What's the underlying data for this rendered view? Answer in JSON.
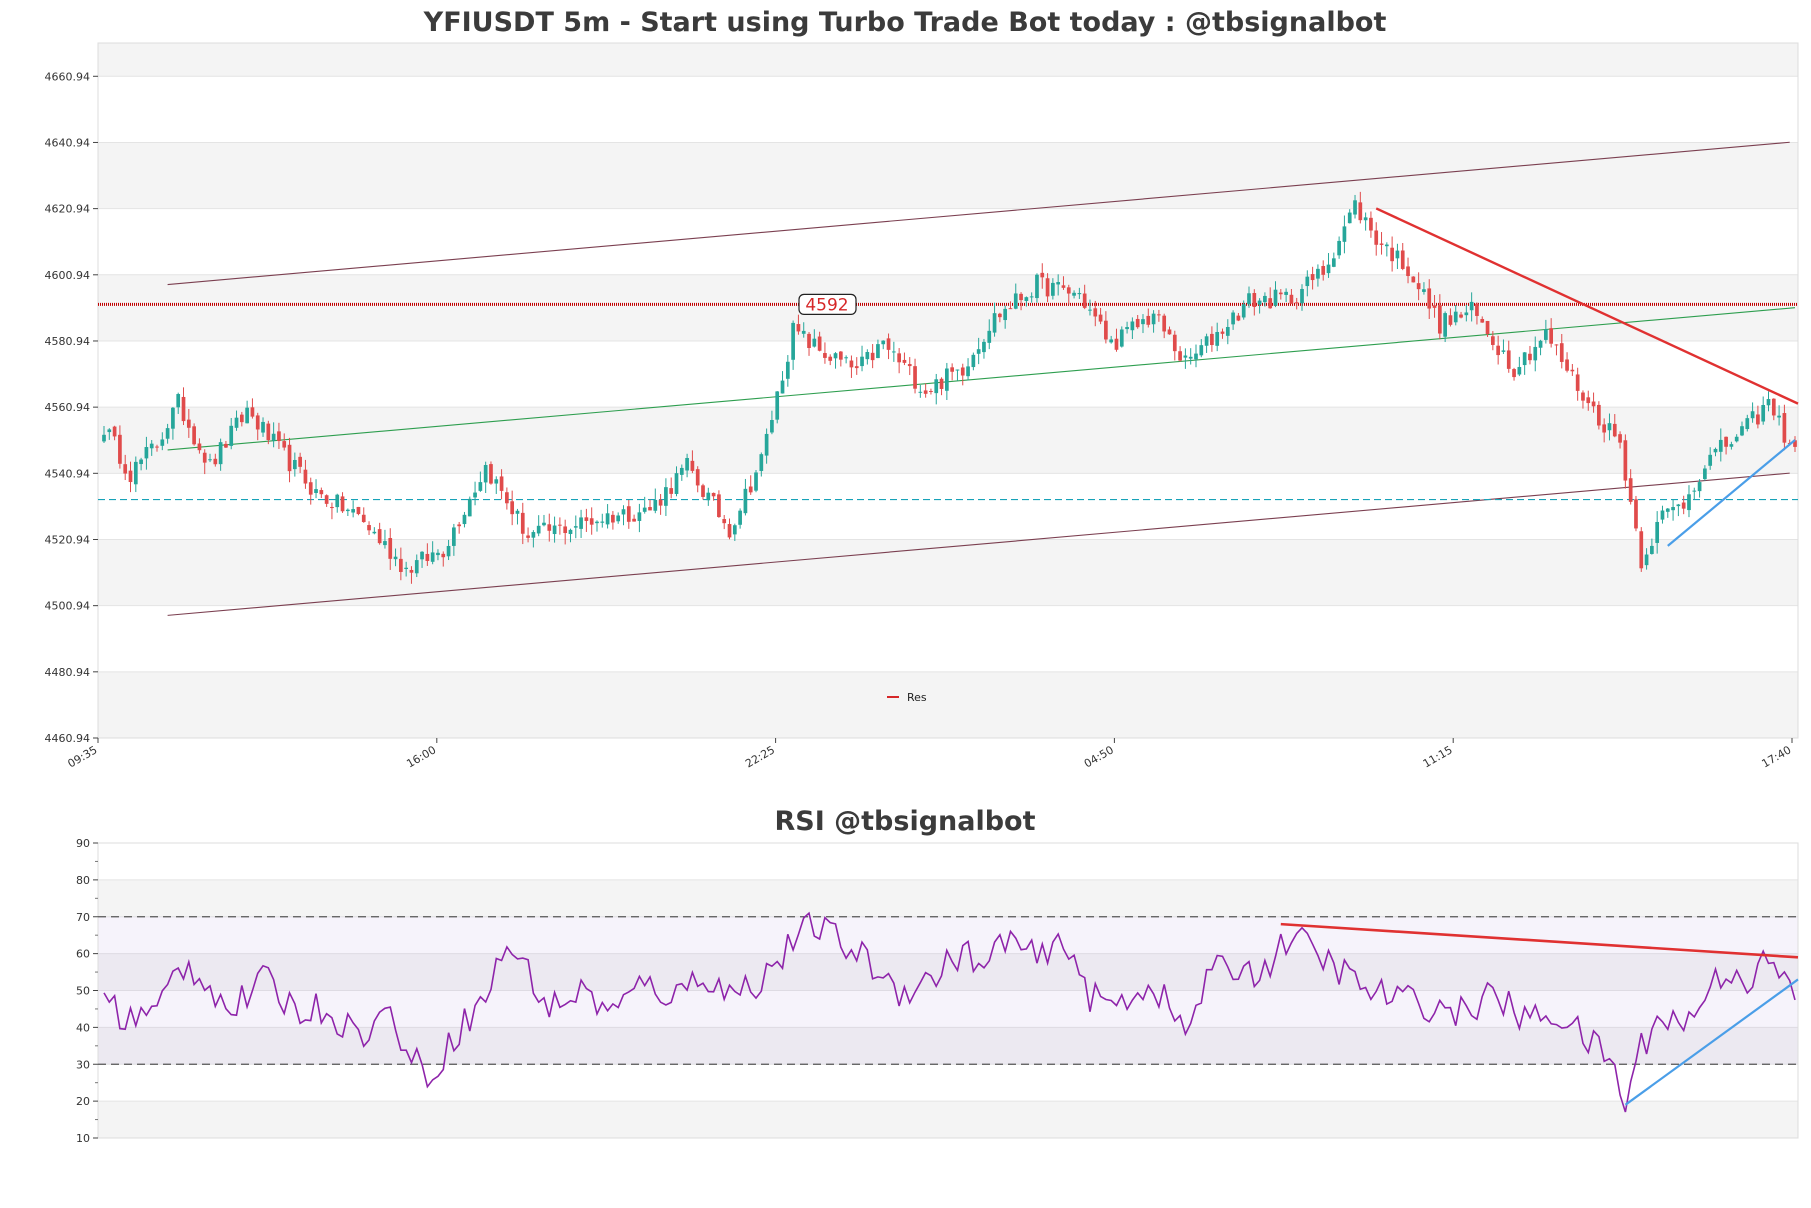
{
  "chart_data": [
    {
      "type": "candlestick",
      "title": "YFIUSDT 5m - Start using Turbo Trade Bot today : @tbsignalbot",
      "y_ticks": [
        "4460.94",
        "4480.94",
        "4500.94",
        "4520.94",
        "4540.94",
        "4560.94",
        "4580.94",
        "4600.94",
        "4620.94",
        "4640.94",
        "4660.94"
      ],
      "ylim": [
        4460.94,
        4671
      ],
      "x_ticks": [
        "09:35",
        "16:00",
        "22:25",
        "04:50",
        "11:15",
        "17:40"
      ],
      "candle_count": 320,
      "legend": [
        {
          "name": "Res",
          "color": "#d62728"
        }
      ],
      "resistance": {
        "value": 4592,
        "label": "4592",
        "color": "#c00000"
      },
      "support_dashed": {
        "value": 4533,
        "color": "#17a2b8"
      },
      "channel": {
        "upper": {
          "from": [
            12,
            4598
          ],
          "to": [
            318,
            4641
          ]
        },
        "lower": {
          "from": [
            12,
            4498
          ],
          "to": [
            318,
            4541
          ]
        },
        "mid": {
          "from": [
            12,
            4548
          ],
          "to": [
            320,
            4591
          ]
        }
      },
      "trend_down": {
        "from": [
          240,
          4621
        ],
        "to": [
          320,
          4562
        ]
      },
      "trend_up": {
        "from": [
          295,
          4519
        ],
        "to": [
          319,
          4551
        ]
      },
      "anchors": [
        [
          0,
          4555
        ],
        [
          5,
          4541
        ],
        [
          10,
          4550
        ],
        [
          14,
          4562
        ],
        [
          20,
          4543
        ],
        [
          27,
          4560
        ],
        [
          33,
          4548
        ],
        [
          40,
          4535
        ],
        [
          48,
          4528
        ],
        [
          57,
          4512
        ],
        [
          64,
          4518
        ],
        [
          72,
          4543
        ],
        [
          80,
          4522
        ],
        [
          88,
          4525
        ],
        [
          95,
          4528
        ],
        [
          103,
          4530
        ],
        [
          110,
          4543
        ],
        [
          118,
          4524
        ],
        [
          124,
          4545
        ],
        [
          130,
          4584
        ],
        [
          136,
          4577
        ],
        [
          142,
          4572
        ],
        [
          147,
          4580
        ],
        [
          155,
          4566
        ],
        [
          162,
          4573
        ],
        [
          168,
          4588
        ],
        [
          176,
          4598
        ],
        [
          184,
          4595
        ],
        [
          190,
          4580
        ],
        [
          198,
          4589
        ],
        [
          204,
          4574
        ],
        [
          208,
          4580
        ],
        [
          216,
          4593
        ],
        [
          224,
          4594
        ],
        [
          230,
          4602
        ],
        [
          236,
          4622
        ],
        [
          240,
          4612
        ],
        [
          246,
          4603
        ],
        [
          252,
          4586
        ],
        [
          258,
          4590
        ],
        [
          266,
          4573
        ],
        [
          272,
          4583
        ],
        [
          280,
          4562
        ],
        [
          286,
          4550
        ],
        [
          290,
          4515
        ],
        [
          294,
          4528
        ],
        [
          298,
          4532
        ],
        [
          302,
          4544
        ],
        [
          310,
          4555
        ],
        [
          314,
          4562
        ],
        [
          317,
          4553
        ],
        [
          319,
          4549
        ]
      ],
      "colors": {
        "up": "#26a69a",
        "down": "#e04b4b"
      }
    },
    {
      "type": "line",
      "title": "RSI @tbsignalbot",
      "y_ticks": [
        "10",
        "20",
        "30",
        "40",
        "50",
        "60",
        "70",
        "80",
        "90"
      ],
      "ylim": [
        10,
        90
      ],
      "overbought": 70,
      "oversold": 30,
      "line_color": "#8e24aa",
      "trend_down": {
        "from": [
          222,
          68
        ],
        "to": [
          320,
          59
        ]
      },
      "trend_up": {
        "from": [
          287,
          19
        ],
        "to": [
          320,
          53
        ]
      },
      "anchors": [
        [
          0,
          49
        ],
        [
          4,
          42
        ],
        [
          10,
          44
        ],
        [
          14,
          57
        ],
        [
          18,
          55
        ],
        [
          24,
          44
        ],
        [
          30,
          53
        ],
        [
          36,
          45
        ],
        [
          42,
          45
        ],
        [
          48,
          38
        ],
        [
          54,
          44
        ],
        [
          58,
          31
        ],
        [
          62,
          27
        ],
        [
          66,
          38
        ],
        [
          72,
          48
        ],
        [
          76,
          63
        ],
        [
          80,
          55
        ],
        [
          84,
          45
        ],
        [
          90,
          50
        ],
        [
          96,
          44
        ],
        [
          102,
          52
        ],
        [
          108,
          48
        ],
        [
          112,
          55
        ],
        [
          118,
          49
        ],
        [
          124,
          53
        ],
        [
          130,
          63
        ],
        [
          134,
          68
        ],
        [
          138,
          64
        ],
        [
          144,
          58
        ],
        [
          150,
          50
        ],
        [
          156,
          53
        ],
        [
          162,
          61
        ],
        [
          166,
          55
        ],
        [
          170,
          65
        ],
        [
          176,
          58
        ],
        [
          182,
          63
        ],
        [
          186,
          48
        ],
        [
          190,
          46
        ],
        [
          194,
          49
        ],
        [
          198,
          52
        ],
        [
          204,
          38
        ],
        [
          208,
          53
        ],
        [
          212,
          57
        ],
        [
          216,
          55
        ],
        [
          220,
          57
        ],
        [
          224,
          66
        ],
        [
          228,
          60
        ],
        [
          232,
          57
        ],
        [
          238,
          50
        ],
        [
          244,
          48
        ],
        [
          250,
          46
        ],
        [
          256,
          44
        ],
        [
          262,
          49
        ],
        [
          268,
          42
        ],
        [
          274,
          44
        ],
        [
          280,
          36
        ],
        [
          284,
          32
        ],
        [
          287,
          19
        ],
        [
          290,
          35
        ],
        [
          294,
          44
        ],
        [
          298,
          40
        ],
        [
          302,
          49
        ],
        [
          306,
          56
        ],
        [
          310,
          53
        ],
        [
          314,
          58
        ],
        [
          318,
          50
        ],
        [
          320,
          49
        ]
      ]
    }
  ]
}
